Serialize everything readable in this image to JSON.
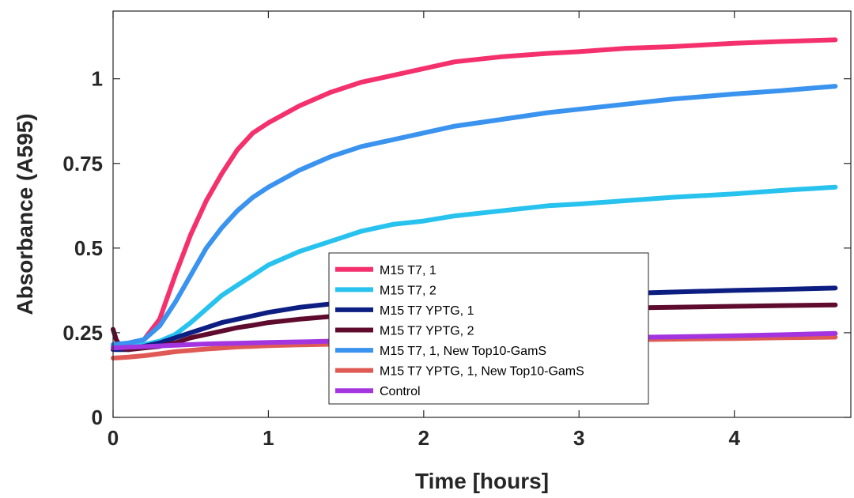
{
  "chart_data": {
    "type": "line",
    "title": "",
    "xlabel": "Time [hours]",
    "ylabel": "Absorbance (A595)",
    "xlim": [
      0,
      4.75
    ],
    "ylim": [
      0,
      1.2
    ],
    "x_ticks": [
      0,
      1,
      2,
      3,
      4
    ],
    "x_tick_labels": [
      "0",
      "1",
      "2",
      "3",
      "4"
    ],
    "y_ticks": [
      0,
      0.25,
      0.5,
      0.75,
      1
    ],
    "y_tick_labels": [
      "0",
      "0.25",
      "0.5",
      "0.75",
      "1"
    ],
    "grid": false,
    "legend_position": "bottom-center",
    "series": [
      {
        "name": "M15 T7, 1",
        "color": "#f4306d",
        "x": [
          0,
          0.1,
          0.2,
          0.3,
          0.4,
          0.5,
          0.6,
          0.7,
          0.8,
          0.9,
          1.0,
          1.2,
          1.4,
          1.6,
          1.8,
          2.0,
          2.2,
          2.5,
          2.8,
          3.0,
          3.3,
          3.6,
          4.0,
          4.3,
          4.65
        ],
        "y": [
          0.21,
          0.215,
          0.23,
          0.29,
          0.42,
          0.54,
          0.64,
          0.72,
          0.79,
          0.84,
          0.87,
          0.92,
          0.96,
          0.99,
          1.01,
          1.03,
          1.05,
          1.065,
          1.075,
          1.08,
          1.09,
          1.095,
          1.105,
          1.11,
          1.115
        ]
      },
      {
        "name": "M15 T7, 2",
        "color": "#28c2ee",
        "x": [
          0,
          0.1,
          0.2,
          0.3,
          0.4,
          0.5,
          0.6,
          0.7,
          0.8,
          0.9,
          1.0,
          1.2,
          1.4,
          1.6,
          1.8,
          2.0,
          2.2,
          2.5,
          2.8,
          3.0,
          3.3,
          3.6,
          4.0,
          4.3,
          4.65
        ],
        "y": [
          0.205,
          0.21,
          0.215,
          0.225,
          0.245,
          0.28,
          0.32,
          0.36,
          0.39,
          0.42,
          0.45,
          0.49,
          0.52,
          0.55,
          0.57,
          0.58,
          0.595,
          0.61,
          0.625,
          0.63,
          0.64,
          0.65,
          0.66,
          0.67,
          0.68
        ]
      },
      {
        "name": "M15 T7 YPTG, 1",
        "color": "#0d1e82",
        "x": [
          0,
          0.1,
          0.2,
          0.3,
          0.4,
          0.5,
          0.6,
          0.7,
          0.8,
          0.9,
          1.0,
          1.2,
          1.4,
          1.6,
          1.8,
          2.0,
          2.2,
          2.5,
          2.8,
          3.0,
          3.3,
          3.6,
          4.0,
          4.3,
          4.65
        ],
        "y": [
          0.2,
          0.2,
          0.21,
          0.22,
          0.235,
          0.25,
          0.265,
          0.28,
          0.29,
          0.3,
          0.31,
          0.325,
          0.335,
          0.34,
          0.345,
          0.35,
          0.352,
          0.356,
          0.36,
          0.362,
          0.366,
          0.37,
          0.375,
          0.378,
          0.382
        ]
      },
      {
        "name": "M15 T7 YPTG, 2",
        "color": "#5e0b2e",
        "x": [
          0,
          0.02,
          0.05,
          0.1,
          0.2,
          0.3,
          0.4,
          0.5,
          0.6,
          0.7,
          0.8,
          0.9,
          1.0,
          1.2,
          1.4,
          1.6,
          1.8,
          2.0,
          2.2,
          2.5,
          2.8,
          3.0,
          3.3,
          3.6,
          4.0,
          4.3,
          4.65
        ],
        "y": [
          0.26,
          0.23,
          0.205,
          0.2,
          0.205,
          0.21,
          0.22,
          0.235,
          0.245,
          0.255,
          0.265,
          0.272,
          0.28,
          0.29,
          0.298,
          0.304,
          0.308,
          0.31,
          0.312,
          0.315,
          0.318,
          0.32,
          0.323,
          0.325,
          0.328,
          0.33,
          0.332
        ]
      },
      {
        "name": "M15 T7, 1, New Top10-GamS",
        "color": "#3a93ee",
        "x": [
          0,
          0.1,
          0.2,
          0.3,
          0.4,
          0.5,
          0.6,
          0.7,
          0.8,
          0.9,
          1.0,
          1.2,
          1.4,
          1.6,
          1.8,
          2.0,
          2.2,
          2.5,
          2.8,
          3.0,
          3.3,
          3.6,
          4.0,
          4.3,
          4.65
        ],
        "y": [
          0.215,
          0.22,
          0.23,
          0.27,
          0.34,
          0.42,
          0.5,
          0.56,
          0.61,
          0.65,
          0.68,
          0.73,
          0.77,
          0.8,
          0.82,
          0.84,
          0.86,
          0.88,
          0.9,
          0.91,
          0.925,
          0.94,
          0.955,
          0.965,
          0.978
        ]
      },
      {
        "name": "M15 T7 YPTG, 1, New Top10-GamS",
        "color": "#e05a55",
        "x": [
          0,
          0.1,
          0.2,
          0.3,
          0.4,
          0.5,
          0.6,
          0.7,
          0.8,
          0.9,
          1.0,
          1.2,
          1.4,
          1.6,
          1.8,
          2.0,
          2.2,
          2.5,
          2.8,
          3.0,
          3.3,
          3.6,
          4.0,
          4.3,
          4.65
        ],
        "y": [
          0.175,
          0.178,
          0.182,
          0.188,
          0.194,
          0.198,
          0.202,
          0.205,
          0.208,
          0.21,
          0.212,
          0.214,
          0.216,
          0.218,
          0.22,
          0.222,
          0.223,
          0.225,
          0.226,
          0.227,
          0.229,
          0.231,
          0.233,
          0.235,
          0.237
        ]
      },
      {
        "name": "Control",
        "color": "#a335e0",
        "x": [
          0,
          0.1,
          0.2,
          0.3,
          0.4,
          0.5,
          0.6,
          0.7,
          0.8,
          0.9,
          1.0,
          1.2,
          1.4,
          1.6,
          1.8,
          2.0,
          2.2,
          2.5,
          2.8,
          3.0,
          3.3,
          3.6,
          4.0,
          4.3,
          4.65
        ],
        "y": [
          0.205,
          0.207,
          0.209,
          0.211,
          0.213,
          0.215,
          0.217,
          0.218,
          0.219,
          0.22,
          0.221,
          0.223,
          0.225,
          0.226,
          0.227,
          0.228,
          0.229,
          0.231,
          0.233,
          0.234,
          0.236,
          0.238,
          0.241,
          0.244,
          0.248
        ]
      }
    ]
  }
}
